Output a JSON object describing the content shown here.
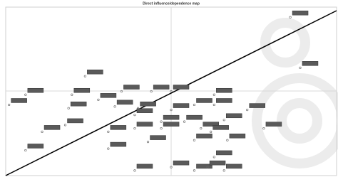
{
  "chart_data": {
    "type": "scatter",
    "title": "Direct influence/dependence map",
    "x": [
      86,
      89,
      24,
      6,
      20,
      35,
      44,
      50,
      28,
      63,
      1,
      19,
      33,
      40,
      50,
      57,
      63,
      73,
      39,
      18,
      47,
      54,
      66,
      11,
      31,
      39,
      47,
      59,
      62,
      78,
      43,
      57,
      67,
      6,
      31,
      63,
      39,
      50,
      57,
      61,
      66
    ],
    "y": [
      94,
      64,
      59,
      48,
      48,
      50,
      50,
      50,
      45,
      48,
      42,
      40,
      41,
      40,
      39,
      42,
      42,
      39,
      36,
      30,
      32,
      32,
      33,
      26,
      26,
      28,
      28,
      28,
      26,
      28,
      20,
      21,
      21,
      15,
      16,
      11,
      3,
      5,
      3,
      5,
      3
    ],
    "color": "#666666",
    "xlim": [
      0,
      100
    ],
    "ylim": [
      0,
      100
    ]
  }
}
